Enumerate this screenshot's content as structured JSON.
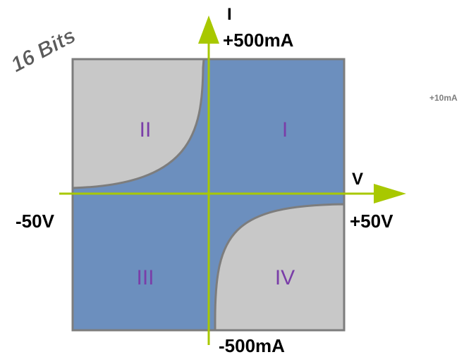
{
  "badge": {
    "text": "16 Bits"
  },
  "axes": {
    "current_label": "I",
    "voltage_label": "V",
    "current_max": "+500mA",
    "current_min": "-500mA",
    "voltage_min": "-50V",
    "voltage_max": "+50V"
  },
  "side_note": "+10mA",
  "quadrants": [
    {
      "id": "I",
      "label": "I"
    },
    {
      "id": "II",
      "label": "II"
    },
    {
      "id": "III",
      "label": "III"
    },
    {
      "id": "IV",
      "label": "IV"
    }
  ],
  "colors": {
    "blue_region": "#6c8fbe",
    "gray_region": "#c8c8c8",
    "axis": "#a8c800",
    "quadrant_text": "#7a3ea8",
    "badge_text": "#5a5a5a"
  }
}
